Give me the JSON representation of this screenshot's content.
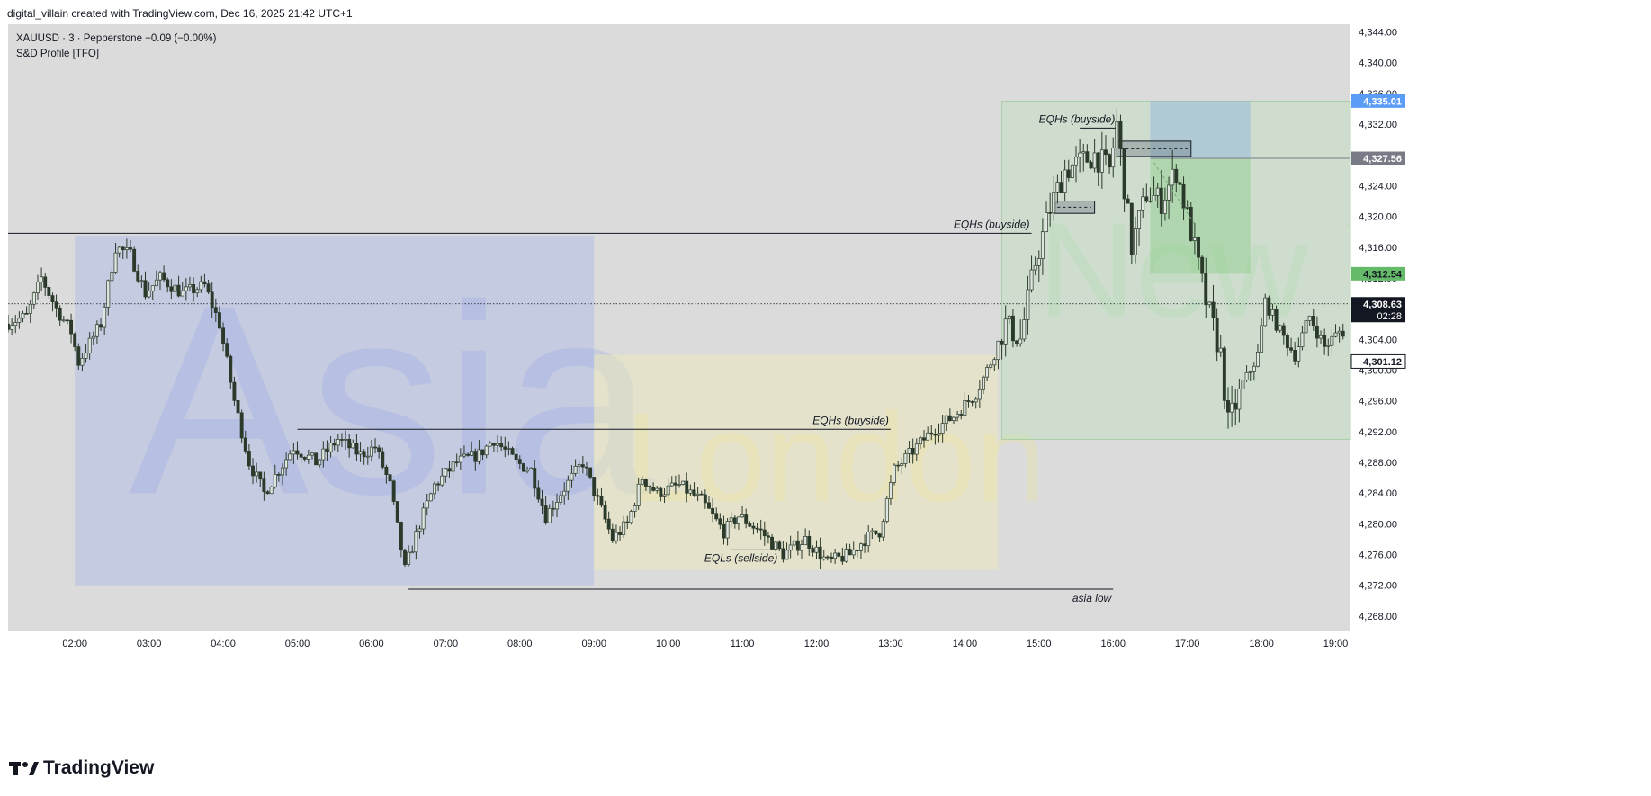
{
  "header": {
    "credit": "digital_villain created with TradingView.com, Dec 16, 2025 21:42 UTC+1"
  },
  "legend": {
    "symbol_line": "XAUUSD · 3 · Pepperstone  −0.09 (−0.00%)",
    "indicator_line": "S&D Profile [TFO]"
  },
  "footer": {
    "brand": "TradingView"
  },
  "colors": {
    "pane_bg": "#dbdbdb",
    "asia_box": "rgba(170,185,230,0.45)",
    "london_box": "rgba(235,232,190,0.55)",
    "newyork_box": "rgba(190,225,190,0.45)",
    "candle": "#2b3a2b",
    "line": "#131722",
    "price_label_last": "#131722",
    "price_label_blue": "#5b9cf6",
    "price_label_gray": "#787b86",
    "price_label_green": "#66bb6a"
  },
  "chart_data": {
    "type": "candlestick",
    "symbol": "XAUUSD",
    "timeframe": "3",
    "broker": "Pepperstone",
    "ylim": [
      4266,
      4345
    ],
    "y_ticks": [
      4268,
      4272,
      4276,
      4280,
      4284,
      4288,
      4292,
      4296,
      4300,
      4304,
      4308,
      4312,
      4316,
      4320,
      4324,
      4328,
      4332,
      4336,
      4340,
      4344
    ],
    "y_tick_labels": [
      "4,268.00",
      "4,272.00",
      "4,276.00",
      "4,280.00",
      "4,284.00",
      "4,288.00",
      "4,292.00",
      "4,296.00",
      "4,300.00",
      "4,304.00",
      "4,308.00",
      "4,312.00",
      "4,316.00",
      "4,320.00",
      "4,324.00",
      "4,328.00",
      "4,332.00",
      "4,336.00",
      "4,340.00",
      "4,344.00"
    ],
    "x_range_hours": [
      1.1,
      19.2
    ],
    "x_ticks": [
      "02:00",
      "03:00",
      "04:00",
      "05:00",
      "06:00",
      "07:00",
      "08:00",
      "09:00",
      "10:00",
      "11:00",
      "12:00",
      "13:00",
      "14:00",
      "15:00",
      "16:00",
      "17:00",
      "18:00",
      "19:00"
    ],
    "x_tick_hours": [
      2,
      3,
      4,
      5,
      6,
      7,
      8,
      9,
      10,
      11,
      12,
      13,
      14,
      15,
      16,
      17,
      18,
      19
    ],
    "price_path": [
      [
        1.1,
        4306
      ],
      [
        1.4,
        4307
      ],
      [
        1.6,
        4312
      ],
      [
        1.8,
        4308
      ],
      [
        2.0,
        4305
      ],
      [
        2.1,
        4301
      ],
      [
        2.4,
        4306
      ],
      [
        2.6,
        4316
      ],
      [
        2.8,
        4315
      ],
      [
        3.0,
        4310
      ],
      [
        3.2,
        4312
      ],
      [
        3.5,
        4310
      ],
      [
        3.8,
        4311
      ],
      [
        4.0,
        4306
      ],
      [
        4.2,
        4296
      ],
      [
        4.4,
        4288
      ],
      [
        4.6,
        4284
      ],
      [
        4.8,
        4287
      ],
      [
        5.0,
        4290
      ],
      [
        5.3,
        4288
      ],
      [
        5.6,
        4291
      ],
      [
        5.9,
        4289
      ],
      [
        6.1,
        4290
      ],
      [
        6.3,
        4285
      ],
      [
        6.5,
        4274
      ],
      [
        6.7,
        4280
      ],
      [
        6.9,
        4285
      ],
      [
        7.2,
        4288
      ],
      [
        7.5,
        4289
      ],
      [
        7.7,
        4291
      ],
      [
        8.0,
        4288
      ],
      [
        8.2,
        4287
      ],
      [
        8.4,
        4281
      ],
      [
        8.6,
        4284
      ],
      [
        8.9,
        4288
      ],
      [
        9.1,
        4283
      ],
      [
        9.3,
        4278
      ],
      [
        9.5,
        4280
      ],
      [
        9.7,
        4286
      ],
      [
        9.9,
        4284
      ],
      [
        10.2,
        4285
      ],
      [
        10.5,
        4283
      ],
      [
        10.8,
        4279
      ],
      [
        11.0,
        4281
      ],
      [
        11.3,
        4279
      ],
      [
        11.6,
        4276
      ],
      [
        11.9,
        4278
      ],
      [
        12.2,
        4275
      ],
      [
        12.5,
        4276
      ],
      [
        12.7,
        4278
      ],
      [
        12.9,
        4279
      ],
      [
        13.1,
        4287
      ],
      [
        13.3,
        4289
      ],
      [
        13.6,
        4292
      ],
      [
        13.9,
        4294
      ],
      [
        14.2,
        4297
      ],
      [
        14.4,
        4301
      ],
      [
        14.6,
        4306
      ],
      [
        14.8,
        4304
      ],
      [
        15.0,
        4314
      ],
      [
        15.2,
        4321
      ],
      [
        15.4,
        4326
      ],
      [
        15.6,
        4327
      ],
      [
        15.8,
        4328
      ],
      [
        16.0,
        4326
      ],
      [
        16.1,
        4332
      ],
      [
        16.3,
        4316
      ],
      [
        16.5,
        4323
      ],
      [
        16.7,
        4322
      ],
      [
        16.9,
        4326
      ],
      [
        17.1,
        4318
      ],
      [
        17.3,
        4309
      ],
      [
        17.5,
        4302
      ],
      [
        17.6,
        4293
      ],
      [
        17.8,
        4298
      ],
      [
        18.0,
        4302
      ],
      [
        18.1,
        4309
      ],
      [
        18.3,
        4305
      ],
      [
        18.5,
        4302
      ],
      [
        18.7,
        4307
      ],
      [
        18.9,
        4303
      ],
      [
        19.1,
        4305
      ]
    ],
    "sessions": [
      {
        "name": "Asia",
        "start": 2.0,
        "end": 9.0,
        "high": 4317.5,
        "low": 4272
      },
      {
        "name": "London",
        "start": 9.0,
        "end": 14.45,
        "high": 4302,
        "low": 4274
      },
      {
        "name": "New Y",
        "start": 14.5,
        "end": 19.2,
        "high": 4335,
        "low": 4291
      }
    ],
    "levels": [
      {
        "label": "EQHs (buyside)",
        "price": 4317.8,
        "x_start": 1.1,
        "x_end": 14.9
      },
      {
        "label": "EQHs (buyside)",
        "price": 4292.3,
        "x_start": 5.0,
        "x_end": 13.0
      },
      {
        "label": "EQLs (sellside)",
        "price": 4276.6,
        "x_start": 10.85,
        "x_end": 11.5
      },
      {
        "label": "asia low",
        "price": 4271.5,
        "x_start": 6.5,
        "x_end": 16.0
      },
      {
        "label": "EQHs (buyside)",
        "price": 4331.5,
        "x_start": 15.55,
        "x_end": 16.05
      }
    ],
    "zones": [
      {
        "x_start": 15.2,
        "x_end": 15.75,
        "top": 4322,
        "bottom": 4320.4
      },
      {
        "x_start": 16.05,
        "x_end": 17.05,
        "top": 4329.8,
        "bottom": 4327.8
      }
    ],
    "position": {
      "entry": 4327.56,
      "stop": 4335.01,
      "target": 4312.54,
      "x_start": 16.5,
      "x_end": 17.85
    },
    "current_price": 4308.63,
    "countdown": "02:28",
    "price_labels": [
      {
        "value": "4,335.01",
        "price": 4335.01,
        "style": "blue"
      },
      {
        "value": "4,327.56",
        "price": 4327.56,
        "style": "gray"
      },
      {
        "value": "4,312.54",
        "price": 4312.54,
        "style": "green"
      },
      {
        "value": "4,308.63",
        "price": 4308.63,
        "style": "last"
      },
      {
        "value": "4,301.12",
        "price": 4301.12,
        "style": "outline"
      }
    ]
  }
}
